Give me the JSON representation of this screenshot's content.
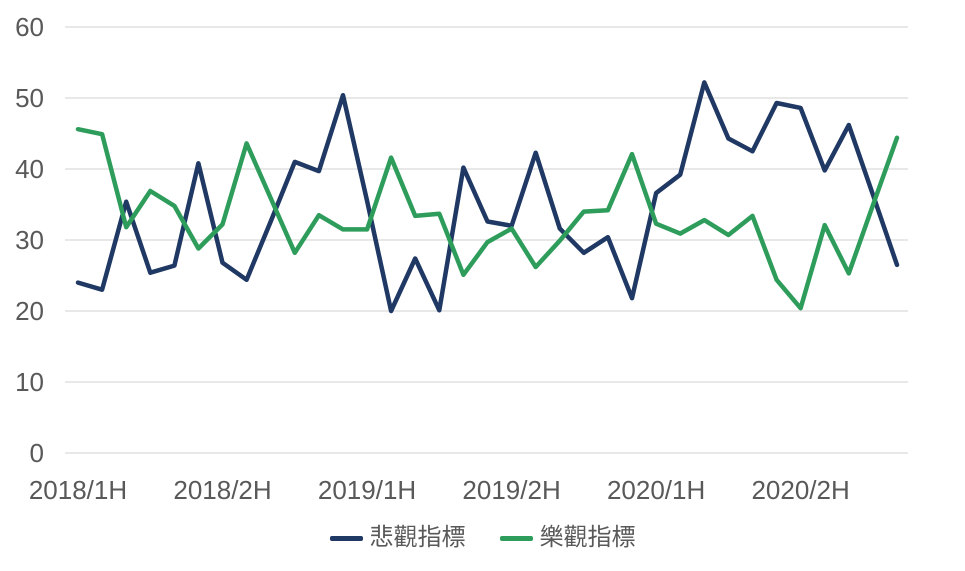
{
  "chart_data": {
    "type": "line",
    "title": "",
    "x_tick_labels": [
      "2018/1H",
      "2018/2H",
      "2019/1H",
      "2019/2H",
      "2020/1H",
      "2020/2H"
    ],
    "x_tick_point_indices": [
      0,
      6,
      12,
      18,
      24,
      30
    ],
    "n_points": 35,
    "x_description": "monthly points, 6 per half-year label",
    "y_ticks": [
      0,
      10,
      20,
      30,
      40,
      50,
      60
    ],
    "ylim": [
      0,
      60
    ],
    "grid": true,
    "legend_position": "bottom",
    "series": [
      {
        "name": "悲觀指標",
        "color": "#1F3864",
        "values": [
          24.0,
          23.0,
          35.4,
          25.4,
          26.4,
          40.8,
          26.8,
          24.4,
          32.6,
          41.0,
          39.7,
          50.4,
          35.5,
          20.0,
          27.4,
          20.1,
          40.2,
          32.6,
          32.0,
          42.3,
          31.6,
          28.2,
          30.4,
          21.8,
          36.6,
          39.2,
          52.2,
          44.3,
          42.5,
          49.3,
          48.6,
          39.8,
          46.2,
          36.4,
          26.5
        ]
      },
      {
        "name": "樂觀指標",
        "color": "#2E9D5B",
        "values": [
          45.6,
          44.9,
          31.8,
          36.9,
          34.8,
          28.8,
          32.2,
          43.6,
          35.9,
          28.2,
          33.5,
          31.5,
          31.5,
          41.6,
          33.4,
          33.7,
          25.1,
          29.7,
          31.6,
          26.2,
          29.9,
          34.0,
          34.2,
          42.1,
          32.3,
          30.9,
          32.8,
          30.7,
          33.4,
          24.4,
          20.4,
          32.1,
          25.3,
          34.9,
          44.4
        ]
      }
    ]
  },
  "colors": {
    "background": "#FFFFFF",
    "gridline": "#D9D9D9",
    "axis_text": "#595959"
  }
}
